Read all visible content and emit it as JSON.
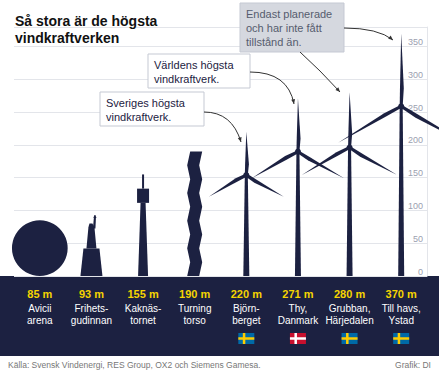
{
  "chart_data": {
    "type": "bar",
    "title": "Så stora är de högsta vindkraftverken",
    "categories": [
      "Avicii\narena",
      "Frihets-\ngudinnan",
      "Kaknäs-\ntornet",
      "Turning\ntorso",
      "Björn-\nberget",
      "Thy,\nDanmark",
      "Grubban,\nHärjedalen",
      "Till havs,\nYstad"
    ],
    "series": [
      {
        "type": "bar",
        "values": [
          85,
          93,
          155,
          190,
          null,
          null,
          null,
          null
        ],
        "value_labels": [
          "85 m",
          "93 m",
          "155 m",
          "190 m",
          null,
          null,
          null,
          null
        ]
      },
      {
        "type": "turbine",
        "values": [
          null,
          null,
          null,
          null,
          220,
          271,
          280,
          370
        ],
        "value_labels": [
          null,
          null,
          null,
          null,
          "220 m",
          "271 m",
          "280 m",
          "370 m"
        ]
      }
    ],
    "data_labels": true,
    "color": "#1c2141",
    "ylim": [
      0,
      380
    ],
    "yticks": [
      0,
      50,
      100,
      150,
      200,
      250,
      300,
      350
    ],
    "grid": true,
    "annotations": [
      "Sveriges högsta\nvindkraftverk.",
      "Världens högsta\nvindkraftverk.",
      "Endast planerade\noch har inte fått\ntillstånd än."
    ],
    "source": "Källa: Svensk Vindenergi, RES Group, OX2 och Siemens Gamesa.",
    "credit": "Grafik: DI"
  }
}
